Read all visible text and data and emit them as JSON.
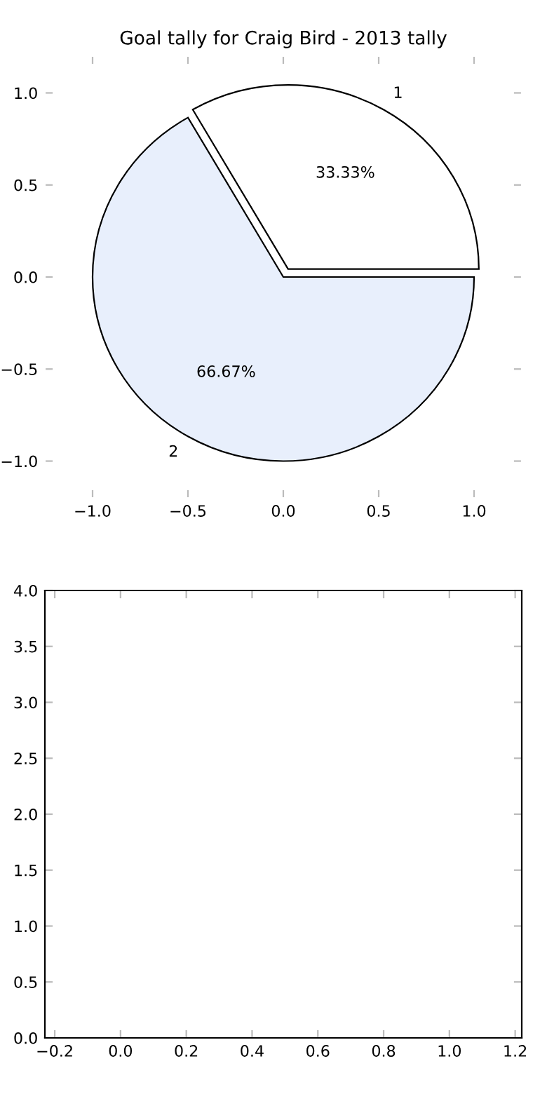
{
  "chart_data": [
    {
      "type": "scatter",
      "title": "Goal tally for Craig Bird - 2013 tally",
      "xlim": [
        -1.25,
        1.25
      ],
      "ylim": [
        -1.2,
        1.2
      ],
      "xticks": [
        {
          "value": -1.0,
          "label": "−1.0"
        },
        {
          "value": -0.5,
          "label": "−0.5"
        },
        {
          "value": 0.0,
          "label": "0.0"
        },
        {
          "value": 0.5,
          "label": "0.5"
        },
        {
          "value": 1.0,
          "label": "1.0"
        }
      ],
      "yticks": [
        {
          "value": -1.0,
          "label": "−1.0"
        },
        {
          "value": -0.5,
          "label": "−0.5"
        },
        {
          "value": 0.0,
          "label": "0.0"
        },
        {
          "value": 0.5,
          "label": "0.5"
        },
        {
          "value": 1.0,
          "label": "1.0"
        }
      ]
    },
    {
      "type": "pie",
      "categories": [
        "1",
        "2"
      ],
      "values": [
        33.33,
        66.67
      ],
      "colors": [
        "#ffffff",
        "#e8effc"
      ],
      "value_labels": [
        "33.33%",
        "66.67%"
      ]
    },
    {
      "type": "scatter",
      "xlim": [
        -0.23,
        1.22
      ],
      "ylim": [
        0,
        4
      ],
      "xticks": [
        {
          "value": -0.2,
          "label": "−0.2"
        },
        {
          "value": 0.0,
          "label": "0.0"
        },
        {
          "value": 0.2,
          "label": "0.2"
        },
        {
          "value": 0.4,
          "label": "0.4"
        },
        {
          "value": 0.6,
          "label": "0.6"
        },
        {
          "value": 0.8,
          "label": "0.8"
        },
        {
          "value": 1.0,
          "label": "1.0"
        },
        {
          "value": 1.2,
          "label": "1.2"
        }
      ],
      "yticks": [
        {
          "value": 0.0,
          "label": "0.0"
        },
        {
          "value": 0.5,
          "label": "0.5"
        },
        {
          "value": 1.0,
          "label": "1.0"
        },
        {
          "value": 1.5,
          "label": "1.5"
        },
        {
          "value": 2.0,
          "label": "2.0"
        },
        {
          "value": 2.5,
          "label": "2.5"
        },
        {
          "value": 3.0,
          "label": "3.0"
        },
        {
          "value": 3.5,
          "label": "3.5"
        },
        {
          "value": 4.0,
          "label": "4.0"
        }
      ]
    }
  ]
}
